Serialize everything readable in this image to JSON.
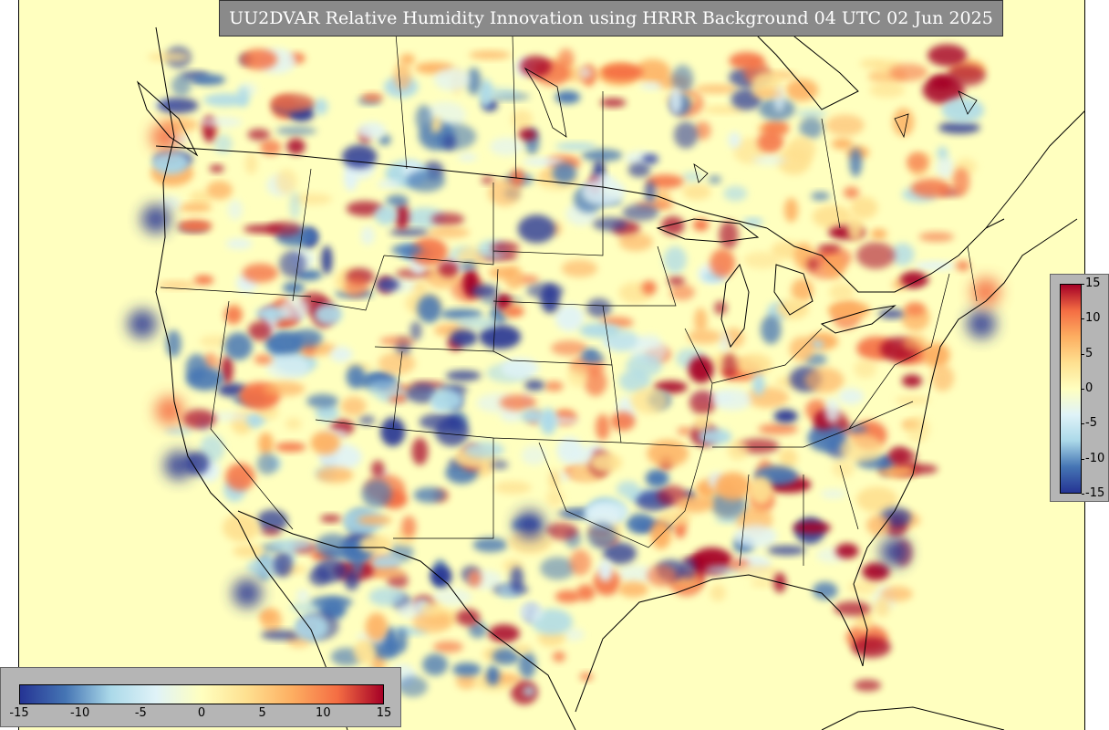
{
  "title": "UU2DVAR Relative Humidity Innovation using HRRR Background 04 UTC 02 Jun 2025",
  "colorbar": {
    "min": -15,
    "max": 15,
    "vertical_ticks": [
      "15",
      "10",
      "5",
      "0",
      "-5",
      "-10",
      "-15"
    ],
    "horizontal_ticks": [
      "-15",
      "-10",
      "-5",
      "0",
      "5",
      "10",
      "15"
    ],
    "colors": {
      "strong_negative": "#253494",
      "negative": "#4575b4",
      "light_negative": "#abd9e9",
      "neutral_low": "#e0f3f8",
      "neutral": "#ffffbf",
      "neutral_high": "#fee090",
      "light_positive": "#fdae61",
      "positive": "#f46d43",
      "strong_positive": "#a50026"
    }
  },
  "map": {
    "background_color": "#ffffbf",
    "line_color": "#000000"
  }
}
